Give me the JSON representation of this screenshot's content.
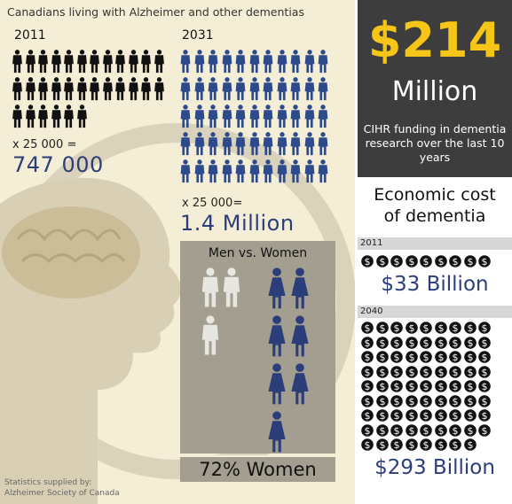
{
  "title": "Canadians living with Alzheimer and other dementias",
  "colors": {
    "y2011": "#111111",
    "y2031": "#2c4a8c",
    "men": "#e8e6e0",
    "women": "#2c3e7a",
    "accent": "#f5c518",
    "valueText": "#2c3e7a"
  },
  "chart_data": [
    {
      "type": "bar",
      "title": "Canadians living with Alzheimer and other dementias",
      "categories": [
        "2011",
        "2031"
      ],
      "values": [
        747000,
        1400000
      ],
      "icon_unit_label": "x 25 000 =",
      "icon_unit_label_2": "x 25 000=",
      "icon_counts": [
        30,
        55
      ],
      "value_labels": [
        "747 000",
        "1.4 Million"
      ]
    },
    {
      "type": "bar",
      "title": "Men vs. Women",
      "categories": [
        "Men",
        "Women"
      ],
      "values": [
        28,
        72
      ],
      "icon_counts": [
        3,
        7
      ],
      "annotation": "72% Women"
    },
    {
      "type": "bar",
      "title": "Economic cost of dementia",
      "categories": [
        "2011",
        "2040"
      ],
      "values": [
        33,
        293
      ],
      "unit": "Billion",
      "value_labels": [
        "$33 Billion",
        "$293 Billion"
      ]
    }
  ],
  "funding": {
    "amount": "$214",
    "unit": "Million",
    "description": "CIHR funding in dementia research over the last 10 years"
  },
  "econ_title_1": "Economic cost",
  "econ_title_2": "of dementia",
  "credit_1": "Statistics supplied by:",
  "credit_2": "Alzheimer Society of Canada"
}
